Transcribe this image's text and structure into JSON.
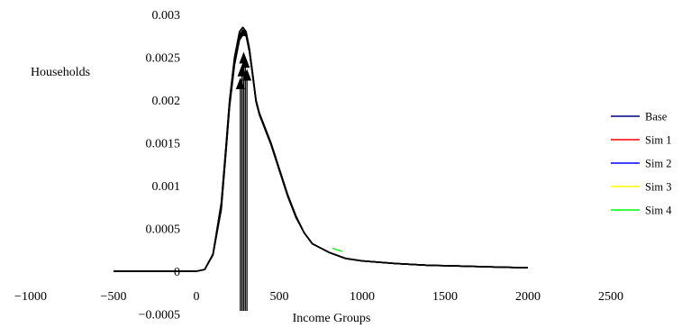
{
  "chart_data": {
    "type": "line",
    "title": "",
    "xlabel": "Income Groups",
    "ylabel": "Households",
    "xlim": [
      -1000,
      2500
    ],
    "ylim": [
      -0.0005,
      0.003
    ],
    "x_ticks": [
      {
        "value": -1000,
        "label": "−1000"
      },
      {
        "value": -500,
        "label": "−500"
      },
      {
        "value": 0,
        "label": "0"
      },
      {
        "value": 500,
        "label": "500"
      },
      {
        "value": 1000,
        "label": "1000"
      },
      {
        "value": 1500,
        "label": "1500"
      },
      {
        "value": 2000,
        "label": "2000"
      },
      {
        "value": 2500,
        "label": "2500"
      }
    ],
    "y_ticks": [
      {
        "value": -0.0005,
        "label": "−0.0005"
      },
      {
        "value": 0,
        "label": "0"
      },
      {
        "value": 0.0005,
        "label": "0.0005"
      },
      {
        "value": 0.001,
        "label": "0.001"
      },
      {
        "value": 0.0015,
        "label": "0.0015"
      },
      {
        "value": 0.002,
        "label": "0.002"
      },
      {
        "value": 0.0025,
        "label": "0.0025"
      },
      {
        "value": 0.003,
        "label": "0.003"
      }
    ],
    "grid": false,
    "legend_position": "right",
    "x": [
      -500,
      0,
      50,
      100,
      150,
      180,
      200,
      230,
      260,
      280,
      300,
      320,
      340,
      360,
      380,
      400,
      450,
      500,
      550,
      600,
      650,
      700,
      800,
      900,
      1000,
      1200,
      1400,
      1600,
      1800,
      2000
    ],
    "series": [
      {
        "name": "Base",
        "color": "#000080",
        "values": [
          0.0,
          0.0,
          2e-05,
          0.0002,
          0.0008,
          0.0015,
          0.002,
          0.0025,
          0.0028,
          0.00285,
          0.0028,
          0.0026,
          0.0023,
          0.002,
          0.00185,
          0.00175,
          0.0015,
          0.0012,
          0.0009,
          0.00065,
          0.00045,
          0.00032,
          0.00022,
          0.00015,
          0.00012,
          9e-05,
          7e-05,
          6e-05,
          5e-05,
          4e-05
        ]
      },
      {
        "name": "Sim 1",
        "color": "#ff0000",
        "values": [
          0.0,
          0.0,
          2e-05,
          0.0002,
          0.00078,
          0.00148,
          0.00198,
          0.00248,
          0.00276,
          0.00282,
          0.00278,
          0.00258,
          0.00229,
          0.00199,
          0.00184,
          0.00174,
          0.00149,
          0.00119,
          0.00089,
          0.00064,
          0.00045,
          0.00032,
          0.00022,
          0.00015,
          0.00012,
          9e-05,
          7e-05,
          6e-05,
          5e-05,
          4e-05
        ]
      },
      {
        "name": "Sim 2",
        "color": "#0000ff",
        "values": [
          0.0,
          0.0,
          2e-05,
          0.0002,
          0.00076,
          0.00146,
          0.00196,
          0.00246,
          0.00274,
          0.0028,
          0.00277,
          0.00257,
          0.00228,
          0.00198,
          0.00183,
          0.00173,
          0.00148,
          0.00118,
          0.00088,
          0.00064,
          0.00045,
          0.00032,
          0.00022,
          0.00015,
          0.00012,
          9e-05,
          7e-05,
          6e-05,
          5e-05,
          4e-05
        ]
      },
      {
        "name": "Sim 3",
        "color": "#ffff00",
        "values": [
          0.0,
          0.0,
          2e-05,
          0.00019,
          0.00074,
          0.00144,
          0.00194,
          0.00243,
          0.00272,
          0.00278,
          0.00276,
          0.00257,
          0.00228,
          0.00199,
          0.00184,
          0.00174,
          0.00149,
          0.00119,
          0.00089,
          0.00064,
          0.00045,
          0.00032,
          0.00022,
          0.00015,
          0.00012,
          9e-05,
          7e-05,
          6e-05,
          5e-05,
          4e-05
        ]
      },
      {
        "name": "Sim 4",
        "color": "#00ff00",
        "values": [
          0.0,
          0.0,
          2e-05,
          0.00019,
          0.00072,
          0.00142,
          0.00192,
          0.00241,
          0.0027,
          0.00276,
          0.00275,
          0.00256,
          0.00227,
          0.00198,
          0.00183,
          0.00173,
          0.00148,
          0.00118,
          0.00088,
          0.00063,
          0.00045,
          0.00032,
          0.00022,
          0.00015,
          0.00012,
          9e-05,
          7e-05,
          6e-05,
          5e-05,
          4e-05
        ]
      }
    ],
    "markers": [
      {
        "x": 265,
        "y": 0.0022
      },
      {
        "x": 275,
        "y": 0.00235
      },
      {
        "x": 285,
        "y": 0.0025
      },
      {
        "x": 295,
        "y": 0.00245
      },
      {
        "x": 305,
        "y": 0.0023
      }
    ]
  }
}
